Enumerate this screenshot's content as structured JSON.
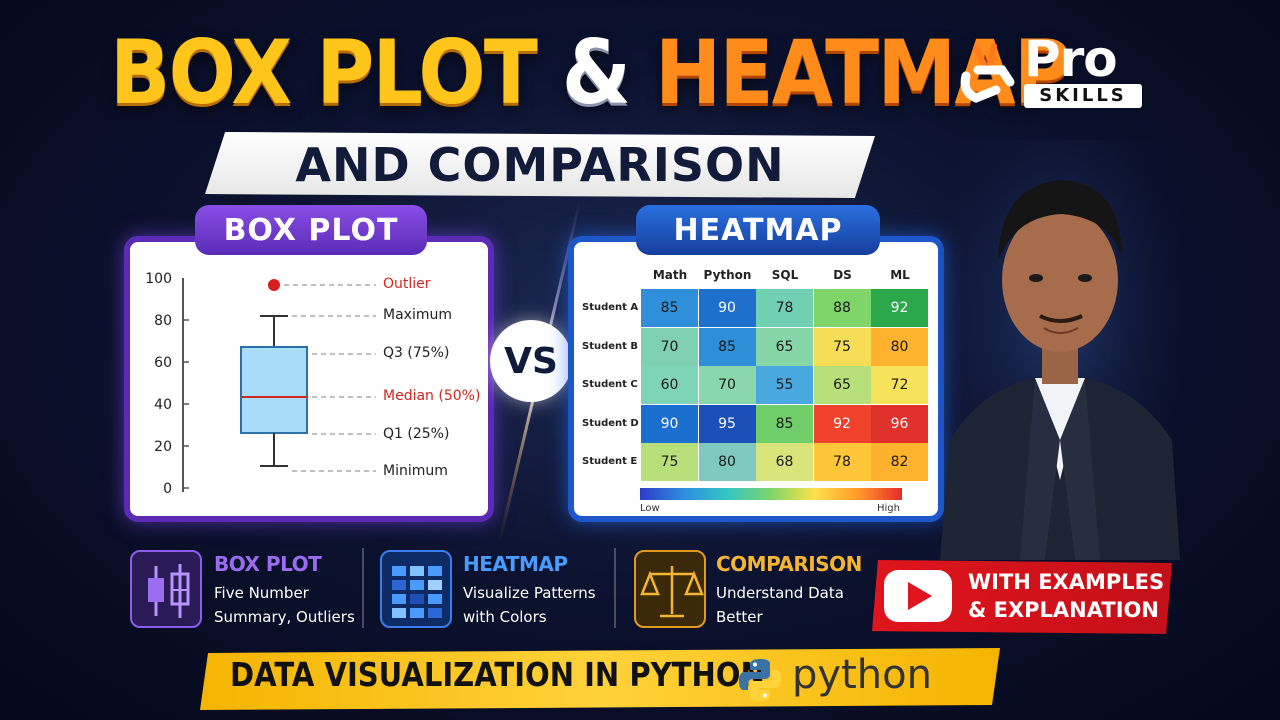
{
  "title": {
    "part1": "BOX PLOT",
    "amp": "&",
    "part2": "HEATMAP",
    "subtitle": "AND COMPARISON"
  },
  "logo": {
    "pro": "Pro",
    "skills": "SKILLS"
  },
  "box_panel": {
    "label": "BOX PLOT",
    "axis_ticks": [
      "100",
      "80",
      "60",
      "40",
      "20",
      "0"
    ],
    "labels": {
      "outlier": "Outlier",
      "maximum": "Maximum",
      "q3": "Q3 (75%)",
      "median": "Median (50%)",
      "q1": "Q1 (25%)",
      "minimum": "Minimum"
    }
  },
  "vs": "VS",
  "heat_panel": {
    "label": "HEATMAP",
    "columns": [
      "Math",
      "Python",
      "SQL",
      "DS",
      "ML"
    ],
    "rows": [
      {
        "name": "Student A",
        "values": [
          "85",
          "90",
          "78",
          "88",
          "92"
        ]
      },
      {
        "name": "Student B",
        "values": [
          "70",
          "85",
          "65",
          "75",
          "80"
        ]
      },
      {
        "name": "Student C",
        "values": [
          "60",
          "70",
          "55",
          "65",
          "72"
        ]
      },
      {
        "name": "Student D",
        "values": [
          "90",
          "95",
          "85",
          "92",
          "96"
        ]
      },
      {
        "name": "Student E",
        "values": [
          "75",
          "80",
          "68",
          "78",
          "82"
        ]
      }
    ],
    "scale_low": "Low",
    "scale_high": "High"
  },
  "features": [
    {
      "title": "BOX PLOT",
      "line1": "Five Number",
      "line2": "Summary, Outliers",
      "color": "#9b6bf0"
    },
    {
      "title": "HEATMAP",
      "line1": "Visualize Patterns",
      "line2": "with Colors",
      "color": "#4a9bff"
    },
    {
      "title": "COMPARISON",
      "line1": "Understand Data",
      "line2": "Better",
      "color": "#f5b531"
    }
  ],
  "youtube": {
    "line1": "WITH EXAMPLES",
    "line2": "& EXPLANATION"
  },
  "bottom": {
    "text": "DATA VISUALIZATION IN PYTHON",
    "python": "python"
  }
}
